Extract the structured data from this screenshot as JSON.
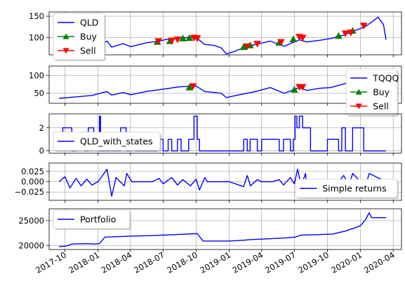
{
  "colors": {
    "line": "#0000ff",
    "buy": "#008000",
    "sell": "#ff0000",
    "grid": "#b0b0b0"
  },
  "x_ticks": [
    "2017-10",
    "2018-01",
    "2018-04",
    "2018-07",
    "2018-10",
    "2019-01",
    "2019-04",
    "2019-07",
    "2019-10",
    "2020-01",
    "2020-04"
  ],
  "chart_data": [
    {
      "type": "line",
      "name": "QLD panel",
      "series": [
        {
          "name": "QLD",
          "style": "line",
          "x": [
            "2017-09-15",
            "2017-10-10",
            "2017-11-10",
            "2017-12-15",
            "2018-01-10",
            "2018-01-26",
            "2018-02-08",
            "2018-03-12",
            "2018-04-02",
            "2018-05-15",
            "2018-06-20",
            "2018-07-10",
            "2018-08-15",
            "2018-09-15",
            "2018-10-01",
            "2018-10-25",
            "2018-11-20",
            "2018-12-10",
            "2018-12-24",
            "2019-01-15",
            "2019-02-15",
            "2019-03-15",
            "2019-04-25",
            "2019-06-03",
            "2019-06-20",
            "2019-07-15",
            "2019-08-05",
            "2019-09-10",
            "2019-10-10",
            "2019-11-15",
            "2019-12-15",
            "2020-01-15",
            "2020-02-10",
            "2020-02-19",
            "2020-03-05",
            "2020-03-12"
          ],
          "y": [
            64,
            68,
            73,
            77,
            84,
            92,
            78,
            86,
            79,
            88,
            92,
            96,
            99,
            101,
            100,
            84,
            82,
            76,
            62,
            68,
            78,
            84,
            92,
            80,
            86,
            95,
            90,
            94,
            98,
            106,
            116,
            126,
            142,
            148,
            130,
            95
          ]
        },
        {
          "name": "Buy",
          "style": "marker-up",
          "x": [
            "2017-10-02",
            "2018-06-15",
            "2018-07-20",
            "2018-08-25",
            "2018-09-12",
            "2019-02-10",
            "2019-02-28",
            "2019-05-20",
            "2019-06-28",
            "2019-11-01",
            "2019-12-10"
          ],
          "y": [
            64,
            90,
            92,
            98,
            99,
            78,
            82,
            88,
            96,
            104,
            116
          ]
        },
        {
          "name": "Sell",
          "style": "marker-down",
          "x": [
            "2017-10-20",
            "2018-06-18",
            "2018-07-25",
            "2018-08-10",
            "2018-09-25",
            "2018-10-04",
            "2019-02-20",
            "2019-03-20",
            "2019-05-25",
            "2019-07-15",
            "2019-07-24",
            "2019-11-20",
            "2019-12-05",
            "2020-01-10"
          ],
          "y": [
            65,
            92,
            93,
            96,
            100,
            99,
            80,
            86,
            90,
            102,
            100,
            110,
            112,
            128
          ]
        }
      ],
      "legend": [
        "QLD",
        "Buy",
        "Sell"
      ],
      "legend_position": "upper-left",
      "yticks": [
        100,
        150
      ],
      "ylim": [
        60,
        160
      ],
      "grid": true
    },
    {
      "type": "line",
      "name": "TQQQ panel",
      "series": [
        {
          "name": "TQQQ",
          "style": "line",
          "x": [
            "2017-09-15",
            "2017-11-01",
            "2017-12-15",
            "2018-01-26",
            "2018-02-08",
            "2018-03-12",
            "2018-04-02",
            "2018-05-15",
            "2018-06-20",
            "2018-08-15",
            "2018-09-15",
            "2018-10-01",
            "2018-10-25",
            "2018-12-10",
            "2018-12-24",
            "2019-01-20",
            "2019-03-15",
            "2019-04-25",
            "2019-06-03",
            "2019-07-15",
            "2019-08-05",
            "2019-09-10",
            "2019-10-10",
            "2019-11-15",
            "2019-12-15",
            "2020-01-15",
            "2020-02-10",
            "2020-02-19",
            "2020-03-05",
            "2020-03-12"
          ],
          "y": [
            36,
            40,
            44,
            55,
            45,
            52,
            46,
            55,
            60,
            68,
            70,
            70,
            55,
            50,
            38,
            44,
            55,
            66,
            50,
            66,
            58,
            64,
            66,
            76,
            84,
            96,
            112,
            118,
            96,
            90
          ]
        },
        {
          "name": "Buy",
          "style": "marker-up",
          "x": [
            "2018-09-12",
            "2019-07-01"
          ],
          "y": [
            66,
            60
          ]
        },
        {
          "name": "Sell",
          "style": "marker-down",
          "x": [
            "2018-09-22",
            "2019-07-15",
            "2019-07-24"
          ],
          "y": [
            70,
            68,
            68
          ]
        }
      ],
      "legend": [
        "TQQQ",
        "Buy",
        "Sell"
      ],
      "legend_position": "right",
      "yticks": [
        50,
        100
      ],
      "ylim": [
        22,
        126
      ],
      "grid": true
    },
    {
      "type": "line",
      "name": "QLD_with_states panel",
      "series": [
        {
          "name": "QLD_with_states",
          "style": "step",
          "x": [
            "2017-09-15",
            "2017-09-25",
            "2017-10-20",
            "2017-11-01",
            "2017-11-25",
            "2017-12-05",
            "2017-12-20",
            "2018-01-01",
            "2018-01-05",
            "2018-01-08",
            "2018-01-20",
            "2018-01-25",
            "2018-02-01",
            "2018-02-06",
            "2018-02-20",
            "2018-03-05",
            "2018-03-20",
            "2018-04-01",
            "2018-04-15",
            "2018-05-05",
            "2018-06-01",
            "2018-06-15",
            "2018-07-01",
            "2018-07-15",
            "2018-07-25",
            "2018-08-10",
            "2018-08-20",
            "2018-09-10",
            "2018-09-25",
            "2018-10-04",
            "2018-10-10",
            "2019-01-15",
            "2019-02-10",
            "2019-02-20",
            "2019-02-28",
            "2019-03-20",
            "2019-04-01",
            "2019-05-20",
            "2019-06-01",
            "2019-06-20",
            "2019-06-28",
            "2019-07-03",
            "2019-07-08",
            "2019-07-15",
            "2019-07-24",
            "2019-08-15",
            "2019-10-01",
            "2019-11-01",
            "2019-11-10",
            "2019-11-20",
            "2019-12-01",
            "2019-12-05",
            "2019-12-10",
            "2020-01-10",
            "2020-03-12"
          ],
          "y": [
            1,
            2,
            0,
            1,
            0,
            2,
            1,
            0,
            3,
            0,
            0,
            0,
            1,
            0,
            0,
            2,
            0,
            1,
            0,
            0,
            0,
            1,
            0,
            1,
            0,
            1,
            0,
            1,
            3,
            1,
            0,
            0,
            1,
            0,
            1,
            0,
            1,
            0,
            1,
            0,
            1,
            3,
            2,
            3,
            2,
            0,
            1,
            0,
            2,
            0,
            0,
            0,
            2,
            0,
            0
          ]
        }
      ],
      "legend": [
        "QLD_with_states"
      ],
      "legend_position": "lower-left",
      "yticks": [
        0,
        2
      ],
      "ylim": [
        -0.2,
        3.2
      ],
      "grid": true
    },
    {
      "type": "line",
      "name": "Simple returns panel",
      "series": [
        {
          "name": "Simple returns",
          "style": "line",
          "x": [
            "2017-09-15",
            "2017-10-01",
            "2017-10-15",
            "2017-11-01",
            "2017-11-15",
            "2017-12-01",
            "2017-12-15",
            "2018-01-01",
            "2018-01-26",
            "2018-02-05",
            "2018-02-08",
            "2018-02-20",
            "2018-03-15",
            "2018-03-22",
            "2018-04-05",
            "2018-06-01",
            "2018-06-20",
            "2018-07-01",
            "2018-07-25",
            "2018-08-10",
            "2018-08-25",
            "2018-09-15",
            "2018-10-01",
            "2018-10-10",
            "2018-10-25",
            "2018-11-01",
            "2019-01-01",
            "2019-02-10",
            "2019-02-20",
            "2019-03-01",
            "2019-03-20",
            "2019-04-01",
            "2019-05-01",
            "2019-05-20",
            "2019-06-01",
            "2019-06-20",
            "2019-07-01",
            "2019-07-10",
            "2019-07-20",
            "2019-08-01",
            "2019-08-05",
            "2019-10-01",
            "2019-11-01",
            "2019-11-15",
            "2019-12-01",
            "2019-12-10",
            "2020-01-01",
            "2020-01-15",
            "2020-01-25",
            "2020-03-12"
          ],
          "y": [
            0,
            0.012,
            -0.015,
            0.008,
            -0.01,
            0.006,
            -0.008,
            0,
            0.03,
            -0.02,
            -0.035,
            0.01,
            -0.01,
            0.02,
            0,
            0,
            0.008,
            -0.005,
            0.01,
            -0.008,
            0.005,
            -0.01,
            0.006,
            -0.02,
            0.01,
            0,
            0,
            -0.012,
            0.015,
            -0.01,
            0.005,
            0,
            0,
            0.005,
            -0.008,
            0.01,
            -0.005,
            0.03,
            -0.01,
            0.02,
            -0.02,
            0,
            0,
            0.015,
            -0.008,
            0.02,
            0,
            -0.012,
            0.02,
            0
          ]
        }
      ],
      "legend": [
        "Simple returns"
      ],
      "legend_position": "lower-right",
      "yticks": [
        0.025,
        0.0,
        -0.025
      ],
      "ytick_labels": [
        "0.025",
        "0.000",
        "−0.025"
      ],
      "ylim": [
        -0.045,
        0.045
      ],
      "grid": true
    },
    {
      "type": "line",
      "name": "Portfolio panel",
      "series": [
        {
          "name": "Portfolio",
          "style": "line",
          "x": [
            "2017-09-15",
            "2017-10-05",
            "2017-10-20",
            "2017-12-01",
            "2017-12-20",
            "2018-01-05",
            "2018-01-20",
            "2018-03-01",
            "2018-04-01",
            "2018-06-01",
            "2018-07-01",
            "2018-08-01",
            "2018-09-01",
            "2018-10-04",
            "2018-10-20",
            "2019-01-01",
            "2019-02-15",
            "2019-03-01",
            "2019-04-01",
            "2019-05-01",
            "2019-06-01",
            "2019-07-03",
            "2019-07-20",
            "2019-09-01",
            "2019-10-15",
            "2019-11-01",
            "2019-11-20",
            "2019-12-01",
            "2019-12-15",
            "2020-01-01",
            "2020-01-15",
            "2020-01-25",
            "2020-02-01",
            "2020-03-12"
          ],
          "y": [
            19800,
            19900,
            20300,
            20400,
            20300,
            20400,
            21700,
            21800,
            21900,
            22000,
            22100,
            22200,
            22300,
            22400,
            20900,
            20900,
            21100,
            21200,
            21300,
            21400,
            21500,
            21700,
            22100,
            22200,
            22300,
            22600,
            22900,
            23200,
            23500,
            24000,
            25200,
            26600,
            25600,
            25600
          ]
        }
      ],
      "legend": [
        "Portfolio"
      ],
      "legend_position": "upper-left",
      "yticks": [
        20000,
        25000
      ],
      "ylim": [
        19200,
        27400
      ],
      "grid": true
    }
  ]
}
